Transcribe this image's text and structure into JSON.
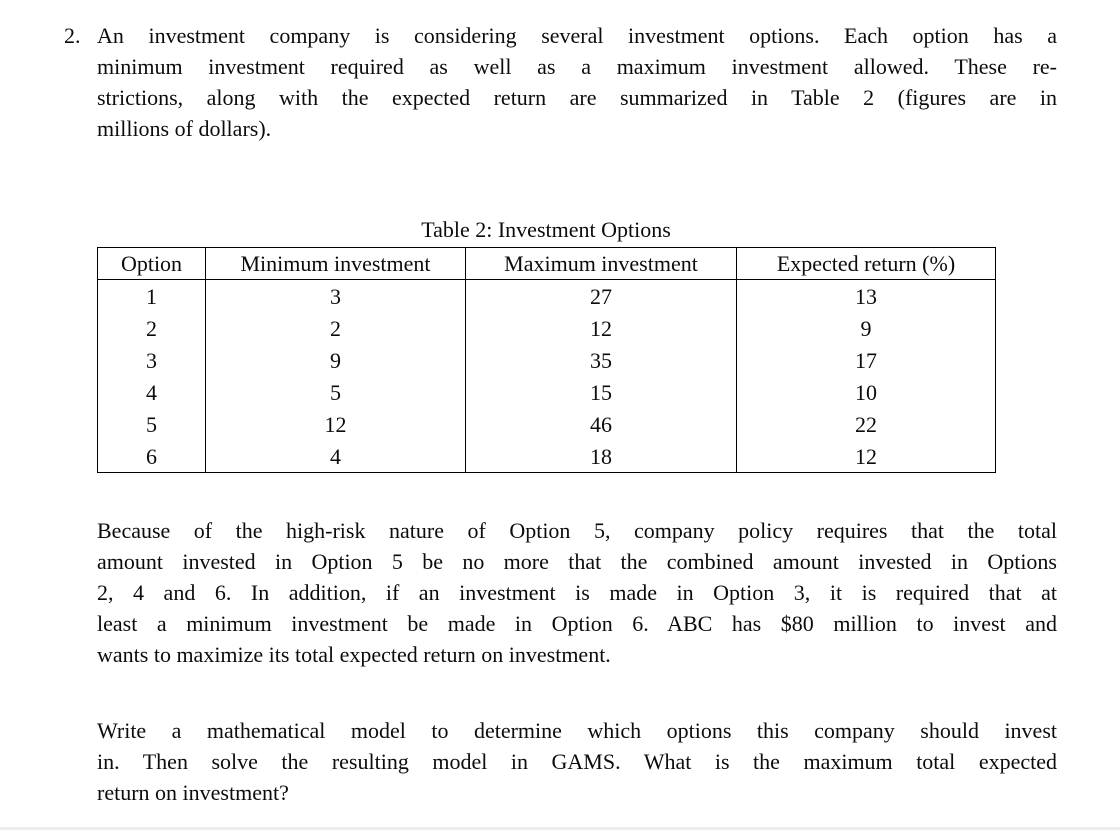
{
  "document": {
    "item_number": "2.",
    "intro": {
      "lines": [
        "An investment company is considering several investment options. Each option has a",
        "minimum investment required as well as a maximum investment allowed. These re-",
        "strictions, along with the expected return are summarized in Table 2 (figures are in",
        "millions of dollars)."
      ]
    },
    "table": {
      "caption": "Table 2: Investment Options",
      "headers": [
        "Option",
        "Minimum investment",
        "Maximum investment",
        "Expected return (%)"
      ],
      "rows": [
        [
          "1",
          "3",
          "27",
          "13"
        ],
        [
          "2",
          "2",
          "12",
          "9"
        ],
        [
          "3",
          "9",
          "35",
          "17"
        ],
        [
          "4",
          "5",
          "15",
          "10"
        ],
        [
          "5",
          "12",
          "46",
          "22"
        ],
        [
          "6",
          "4",
          "18",
          "12"
        ]
      ]
    },
    "policy": {
      "lines": [
        "Because of the high-risk nature of Option 5, company policy requires that the total",
        "amount invested in Option 5 be no more that the combined amount invested in Options",
        "2, 4 and 6. In addition, if an investment is made in Option 3, it is required that at",
        "least a minimum investment be made in Option 6. ABC has $80 million to invest and",
        "wants to maximize its total expected return on investment."
      ]
    },
    "task": {
      "lines": [
        "Write a mathematical model to determine which options this company should invest",
        "in. Then solve the resulting model in GAMS. What is the maximum total expected",
        "return on investment?"
      ]
    }
  }
}
